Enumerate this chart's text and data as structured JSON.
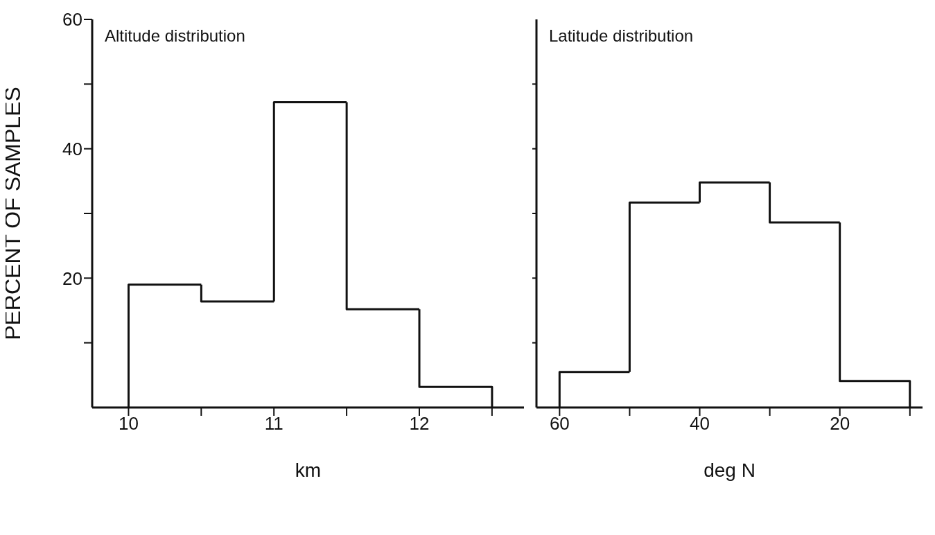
{
  "chart_data": [
    {
      "type": "histogram",
      "title": "Altitude distribution",
      "xlabel": "km",
      "ylabel": "PERCENT OF SAMPLES",
      "bins": [
        10,
        10.5,
        11,
        11.5,
        12,
        12.5
      ],
      "values": [
        19.0,
        16.4,
        47.2,
        15.2,
        3.2
      ],
      "color": "#111111",
      "xlim": [
        9.75,
        12.72
      ],
      "xticks": [
        10,
        {
          "value": 10.5,
          "label": null
        },
        11,
        {
          "value": 11.5,
          "label": null
        },
        12,
        {
          "value": 12.5,
          "label": null
        }
      ],
      "ylim": [
        0,
        60
      ],
      "yticks": [
        20,
        {
          "value": 10,
          "label": null
        },
        {
          "value": 30,
          "label": null
        },
        40,
        {
          "value": 50,
          "label": null
        },
        60
      ],
      "grid": false,
      "legend": false
    },
    {
      "type": "histogram",
      "title": "Latitude distribution",
      "xlabel": "deg N",
      "bins": [
        60,
        50,
        40,
        30,
        20,
        10
      ],
      "values": [
        5.5,
        31.7,
        34.8,
        28.6,
        4.1
      ],
      "color": "#111111",
      "xlim": [
        63.3,
        8.2
      ],
      "xticks": [
        60,
        {
          "value": 50,
          "label": null
        },
        40,
        {
          "value": 30,
          "label": null
        },
        20,
        {
          "value": 10,
          "label": null
        }
      ],
      "ylim": [
        0,
        60
      ],
      "yticks": [
        {
          "value": 10,
          "label": null
        },
        {
          "value": 20,
          "label": null
        },
        {
          "value": 30,
          "label": null
        },
        {
          "value": 40,
          "label": null
        },
        {
          "value": 50,
          "label": null
        }
      ],
      "tick_labels": "x",
      "grid": false,
      "legend": false
    }
  ]
}
